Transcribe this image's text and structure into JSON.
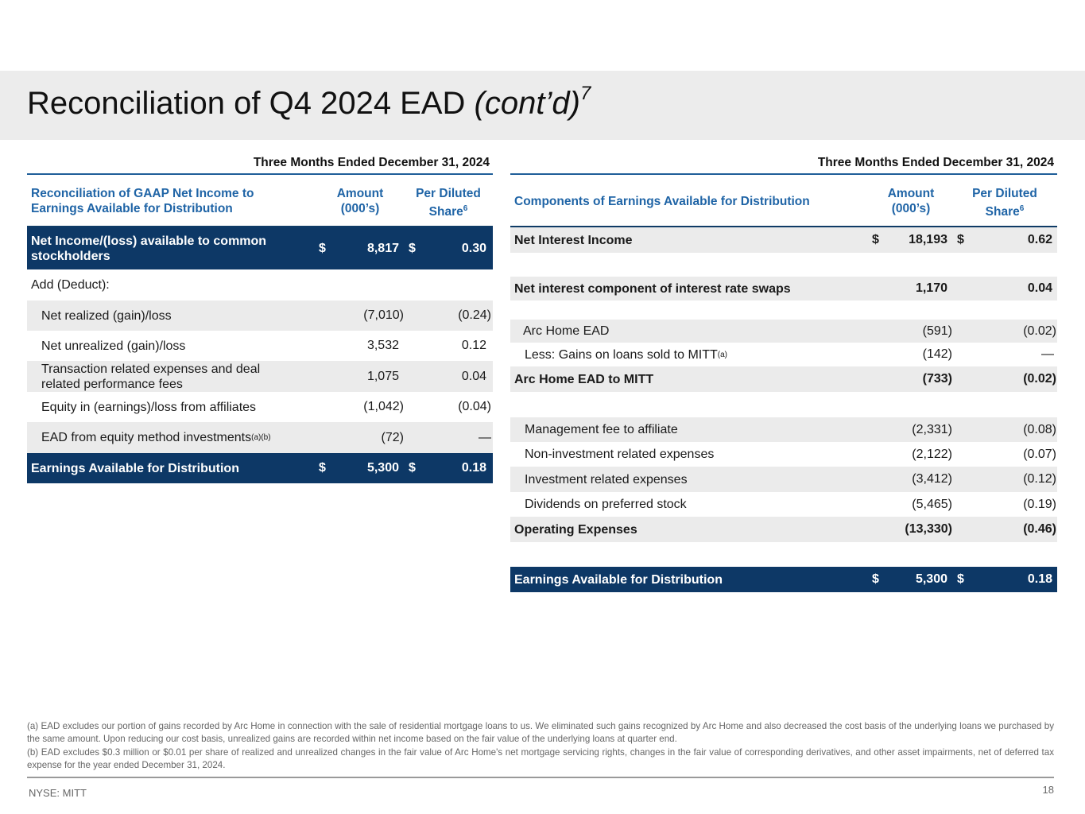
{
  "title": {
    "main": "Reconciliation of Q4 2024 EAD ",
    "italic": "(cont’d)",
    "sup": "7"
  },
  "left_table": {
    "period": "Three Months Ended December 31, 2024",
    "headers": {
      "label": "Reconciliation of GAAP Net Income to Earnings Available for Distribution",
      "amount_line1": "Amount",
      "amount_line2": "(000’s)",
      "share_line1": "Per Diluted",
      "share_line2": "Share",
      "share_sup": "6"
    },
    "rows": [
      {
        "label": "Net Income/(loss) available to common stockholders",
        "dollar1": "$",
        "amount": "8,817",
        "dollar2": "$",
        "share": "0.30"
      },
      {
        "label": "Add (Deduct):"
      },
      {
        "label": "Net realized (gain)/loss",
        "amount": "(7,010)",
        "share": "(0.24)"
      },
      {
        "label": "Net unrealized (gain)/loss",
        "amount": "3,532",
        "share": "0.12"
      },
      {
        "label": "Transaction related expenses and deal related performance fees",
        "amount": "1,075",
        "share": "0.04"
      },
      {
        "label": "Equity in (earnings)/loss from affiliates",
        "amount": "(1,042)",
        "share": "(0.04)"
      },
      {
        "label": "EAD from equity method investments",
        "label_sup": "(a)(b)",
        "amount": "(72)",
        "share": "—"
      },
      {
        "label": "Earnings Available for Distribution",
        "dollar1": "$",
        "amount": "5,300",
        "dollar2": "$",
        "share": "0.18"
      }
    ]
  },
  "right_table": {
    "period": "Three Months Ended December 31, 2024",
    "headers": {
      "label": "Components of Earnings Available for Distribution",
      "amount_line1": "Amount",
      "amount_line2": "(000’s)",
      "share_line1": "Per Diluted",
      "share_line2": "Share",
      "share_sup": "6"
    },
    "rows": [
      {
        "label": "Net Interest Income",
        "dollar1": "$",
        "amount": "18,193",
        "dollar2": "$",
        "share": "0.62"
      },
      {
        "label": "Net interest component of interest rate swaps",
        "amount": "1,170",
        "share": "0.04"
      },
      {
        "label": "Arc Home EAD",
        "amount": "(591)",
        "share": "(0.02)"
      },
      {
        "label": "Less: Gains on loans sold to MITT",
        "label_sup": "(a)",
        "amount": "(142)",
        "share": "—"
      },
      {
        "label": "Arc Home EAD to MITT",
        "amount": "(733)",
        "share": "(0.02)"
      },
      {
        "label": "Management fee to affiliate",
        "amount": "(2,331)",
        "share": "(0.08)"
      },
      {
        "label": "Non-investment related expenses",
        "amount": "(2,122)",
        "share": "(0.07)"
      },
      {
        "label": "Investment related expenses",
        "amount": "(3,412)",
        "share": "(0.12)"
      },
      {
        "label": "Dividends on preferred stock",
        "amount": "(5,465)",
        "share": "(0.19)"
      },
      {
        "label": "Operating Expenses",
        "amount": "(13,330)",
        "share": "(0.46)"
      },
      {
        "label": "Earnings Available for Distribution",
        "dollar1": "$",
        "amount": "5,300",
        "dollar2": "$",
        "share": "0.18"
      }
    ]
  },
  "footnotes": {
    "a": "(a) EAD excludes our portion of gains recorded by Arc Home in connection with the sale of residential mortgage loans to us. We eliminated such gains recognized by Arc Home and also decreased the cost basis of the underlying loans we purchased by the same amount. Upon reducing our cost basis, unrealized gains are recorded within net income based on the fair value of the underlying loans at quarter end.",
    "b": "(b) EAD excludes $0.3 million or $0.01  per share of realized and unrealized changes in the fair value of Arc Home's net mortgage servicing rights, changes in the fair value of corresponding derivatives, and other asset impairments, net of deferred tax expense for the year ended December 31, 2024."
  },
  "footer": {
    "ticker": "NYSE: MITT",
    "page": "18"
  },
  "colors": {
    "navy": "#0d3866",
    "header_blue": "#1f64a6",
    "shade": "#ebebeb",
    "title_band": "#ececec"
  }
}
